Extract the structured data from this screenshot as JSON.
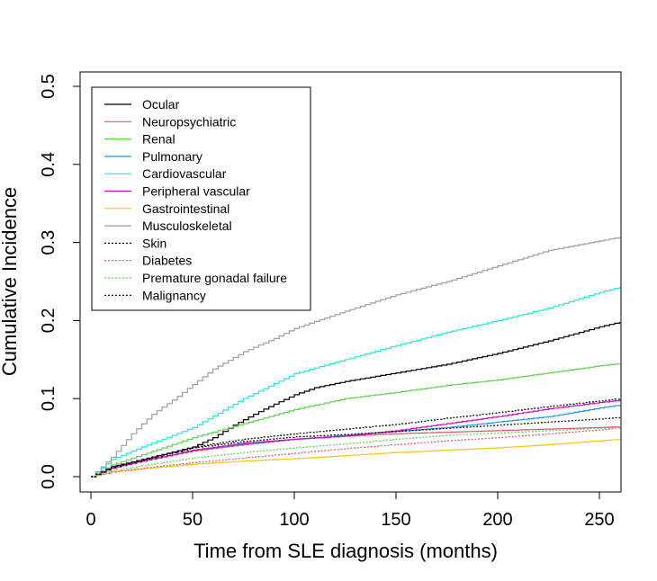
{
  "chart_data": {
    "type": "line",
    "step": true,
    "title": "",
    "xlabel": "Time from SLE diagnosis (months)",
    "ylabel": "Cumulative Incidence",
    "xlim": [
      0,
      260
    ],
    "ylim": [
      0,
      0.5
    ],
    "xticks": [
      "0",
      "50",
      "100",
      "150",
      "200",
      "250"
    ],
    "yticks": [
      "0.0",
      "0.1",
      "0.2",
      "0.3",
      "0.4",
      "0.5"
    ],
    "legend_position": "top-left",
    "series": [
      {
        "name": "Ocular",
        "color": "#000000",
        "dash": "solid",
        "x": [
          0,
          10,
          25,
          50,
          60,
          70,
          80,
          90,
          100,
          110,
          125,
          150,
          175,
          200,
          225,
          250,
          260
        ],
        "y": [
          0,
          0.013,
          0.022,
          0.038,
          0.05,
          0.066,
          0.08,
          0.093,
          0.105,
          0.114,
          0.122,
          0.133,
          0.144,
          0.158,
          0.174,
          0.192,
          0.198
        ]
      },
      {
        "name": "Neuropsychiatric",
        "color": "#df536b",
        "dash": "solid",
        "x": [
          0,
          10,
          25,
          50,
          75,
          100,
          125,
          150,
          175,
          200,
          225,
          250,
          260
        ],
        "y": [
          0,
          0.011,
          0.02,
          0.033,
          0.041,
          0.048,
          0.052,
          0.055,
          0.057,
          0.059,
          0.061,
          0.063,
          0.064
        ]
      },
      {
        "name": "Renal",
        "color": "#61d04f",
        "dash": "solid",
        "x": [
          0,
          10,
          25,
          50,
          75,
          100,
          125,
          150,
          175,
          200,
          225,
          250,
          260
        ],
        "y": [
          0,
          0.015,
          0.028,
          0.05,
          0.068,
          0.086,
          0.1,
          0.108,
          0.117,
          0.124,
          0.133,
          0.142,
          0.145
        ]
      },
      {
        "name": "Pulmonary",
        "color": "#2297e6",
        "dash": "solid",
        "x": [
          0,
          10,
          25,
          50,
          75,
          100,
          125,
          150,
          175,
          200,
          225,
          250,
          260
        ],
        "y": [
          0,
          0.011,
          0.02,
          0.034,
          0.042,
          0.048,
          0.053,
          0.058,
          0.063,
          0.07,
          0.077,
          0.088,
          0.092
        ]
      },
      {
        "name": "Cardiovascular",
        "color": "#28e2e5",
        "dash": "solid",
        "x": [
          0,
          10,
          25,
          50,
          75,
          100,
          125,
          150,
          175,
          200,
          225,
          250,
          260
        ],
        "y": [
          0,
          0.022,
          0.038,
          0.063,
          0.1,
          0.132,
          0.15,
          0.168,
          0.185,
          0.2,
          0.216,
          0.236,
          0.243
        ]
      },
      {
        "name": "Peripheral vascular",
        "color": "#cd0bbc",
        "dash": "solid",
        "x": [
          0,
          10,
          25,
          50,
          75,
          100,
          125,
          150,
          175,
          200,
          225,
          250,
          260
        ],
        "y": [
          0,
          0.011,
          0.02,
          0.034,
          0.043,
          0.048,
          0.052,
          0.059,
          0.068,
          0.077,
          0.087,
          0.095,
          0.098
        ]
      },
      {
        "name": "Gastrointestinal",
        "color": "#f5c710",
        "dash": "solid",
        "x": [
          0,
          10,
          25,
          50,
          75,
          100,
          125,
          150,
          175,
          200,
          225,
          250,
          260
        ],
        "y": [
          0,
          0.006,
          0.01,
          0.016,
          0.02,
          0.023,
          0.027,
          0.031,
          0.034,
          0.037,
          0.041,
          0.046,
          0.048
        ]
      },
      {
        "name": "Musculoskeletal",
        "color": "#9e9e9e",
        "dash": "solid",
        "x": [
          0,
          10,
          20,
          30,
          40,
          50,
          60,
          75,
          90,
          100,
          125,
          150,
          175,
          200,
          225,
          250,
          260
        ],
        "y": [
          0,
          0.025,
          0.055,
          0.08,
          0.098,
          0.118,
          0.138,
          0.16,
          0.177,
          0.19,
          0.212,
          0.233,
          0.25,
          0.27,
          0.29,
          0.302,
          0.307
        ]
      },
      {
        "name": "Skin",
        "color": "#000000",
        "dash": "dotted",
        "x": [
          0,
          10,
          25,
          50,
          75,
          100,
          125,
          150,
          175,
          200,
          225,
          250,
          260
        ],
        "y": [
          0,
          0.012,
          0.021,
          0.037,
          0.045,
          0.051,
          0.054,
          0.058,
          0.062,
          0.066,
          0.07,
          0.074,
          0.076
        ]
      },
      {
        "name": "Diabetes",
        "color": "#df536b",
        "dash": "dotted",
        "x": [
          0,
          10,
          25,
          50,
          75,
          100,
          125,
          150,
          175,
          200,
          225,
          250,
          260
        ],
        "y": [
          0,
          0.006,
          0.011,
          0.018,
          0.024,
          0.03,
          0.036,
          0.041,
          0.046,
          0.05,
          0.055,
          0.06,
          0.063
        ]
      },
      {
        "name": "Premature gonadal failure",
        "color": "#61d04f",
        "dash": "dotted",
        "x": [
          0,
          10,
          25,
          50,
          75,
          100,
          125,
          150,
          175,
          200,
          225,
          250,
          260
        ],
        "y": [
          0,
          0.008,
          0.014,
          0.024,
          0.031,
          0.037,
          0.042,
          0.048,
          0.053,
          0.056,
          0.059,
          0.062,
          0.063
        ]
      },
      {
        "name": "Malignancy",
        "color": "#000000",
        "dash": "dotted",
        "x": [
          0,
          10,
          25,
          50,
          75,
          100,
          125,
          150,
          175,
          200,
          225,
          250,
          260
        ],
        "y": [
          0,
          0.012,
          0.022,
          0.038,
          0.048,
          0.055,
          0.061,
          0.067,
          0.075,
          0.082,
          0.09,
          0.097,
          0.1
        ]
      }
    ]
  }
}
